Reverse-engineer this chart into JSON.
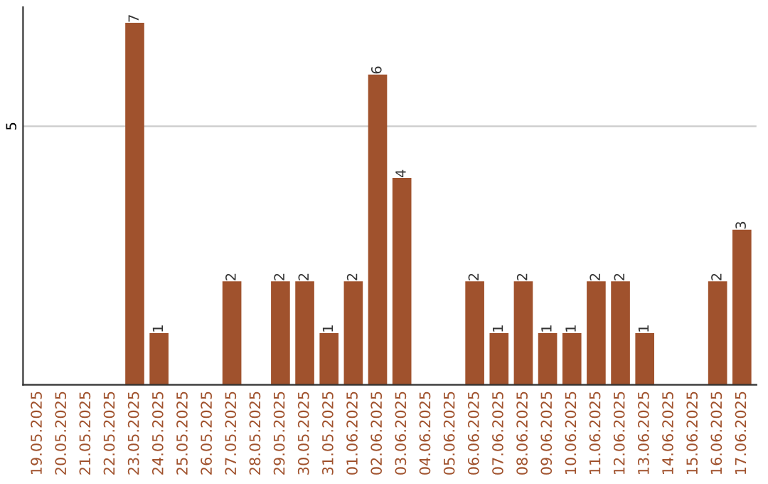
{
  "chart_data": {
    "type": "bar",
    "categories": [
      "19.05.2025",
      "20.05.2025",
      "21.05.2025",
      "22.05.2025",
      "23.05.2025",
      "24.05.2025",
      "25.05.2025",
      "26.05.2025",
      "27.05.2025",
      "28.05.2025",
      "29.05.2025",
      "30.05.2025",
      "31.05.2025",
      "01.06.2025",
      "02.06.2025",
      "03.06.2025",
      "04.06.2025",
      "05.06.2025",
      "06.06.2025",
      "07.06.2025",
      "08.06.2025",
      "09.06.2025",
      "10.06.2025",
      "11.06.2025",
      "12.06.2025",
      "13.06.2025",
      "14.06.2025",
      "15.06.2025",
      "16.06.2025",
      "17.06.2025"
    ],
    "values": [
      0,
      0,
      0,
      0,
      7,
      1,
      0,
      0,
      2,
      0,
      2,
      2,
      1,
      2,
      6,
      4,
      0,
      0,
      2,
      1,
      2,
      1,
      1,
      2,
      2,
      1,
      0,
      0,
      2,
      3
    ],
    "value_labels": [
      null,
      null,
      null,
      null,
      "7",
      "1",
      null,
      null,
      "2",
      null,
      "2",
      "2",
      "1",
      "2",
      "6",
      "4",
      null,
      null,
      "2",
      "1",
      "2",
      "1",
      "1",
      "2",
      "2",
      "1",
      null,
      null,
      "2",
      "3"
    ],
    "color": "#a0522d",
    "ylim": [
      0,
      7.3
    ],
    "yticks": [
      5
    ],
    "grid": "y"
  }
}
